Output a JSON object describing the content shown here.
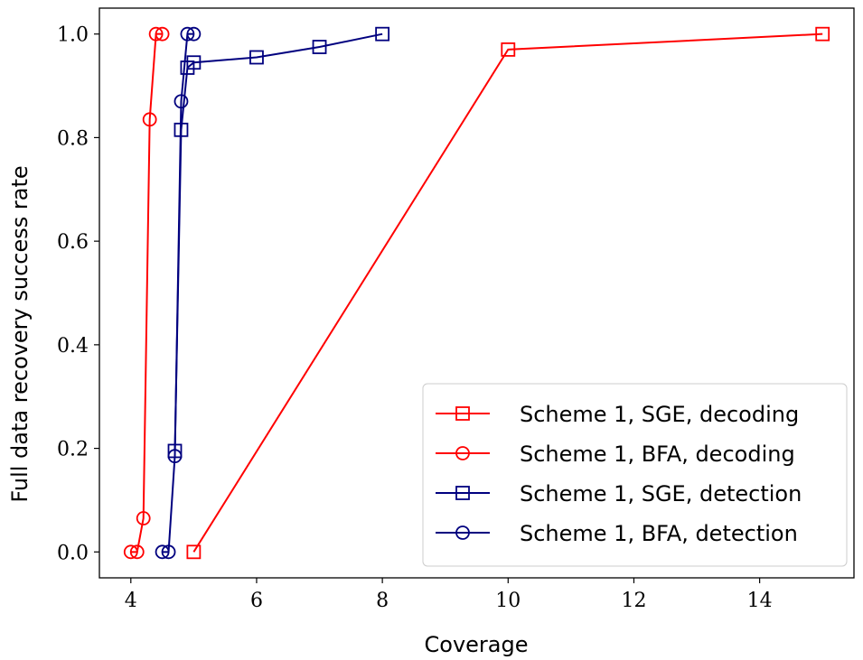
{
  "chart_data": {
    "type": "line",
    "title": "",
    "xlabel": "Coverage",
    "ylabel": "Full data recovery success rate",
    "xlim": [
      3.5,
      15.5
    ],
    "ylim": [
      -0.05,
      1.05
    ],
    "xticks": [
      4,
      6,
      8,
      10,
      12,
      14
    ],
    "yticks": [
      0.0,
      0.2,
      0.4,
      0.6,
      0.8,
      1.0
    ],
    "xtick_labels": [
      "4",
      "6",
      "8",
      "10",
      "12",
      "14"
    ],
    "ytick_labels": [
      "0.0",
      "0.2",
      "0.4",
      "0.6",
      "0.8",
      "1.0"
    ],
    "grid": false,
    "legend_position": "lower-right",
    "series": [
      {
        "name": "Scheme 1, SGE, decoding",
        "color": "#ff0000",
        "marker": "square",
        "x": [
          5,
          10,
          15
        ],
        "y": [
          0.0,
          0.97,
          1.0
        ]
      },
      {
        "name": "Scheme 1, BFA, decoding",
        "color": "#ff0000",
        "marker": "circle",
        "x": [
          4.0,
          4.1,
          4.2,
          4.3,
          4.4,
          4.5
        ],
        "y": [
          0.0,
          0.0,
          0.065,
          0.835,
          1.0,
          1.0
        ]
      },
      {
        "name": "Scheme 1, SGE, detection",
        "color": "#00007f",
        "marker": "square",
        "x": [
          4.7,
          4.8,
          4.9,
          5.0,
          6.0,
          7.0,
          8.0
        ],
        "y": [
          0.195,
          0.815,
          0.935,
          0.945,
          0.955,
          0.975,
          1.0
        ]
      },
      {
        "name": "Scheme 1, BFA, detection",
        "color": "#00007f",
        "marker": "circle",
        "x": [
          4.5,
          4.6,
          4.7,
          4.8,
          4.9,
          5.0
        ],
        "y": [
          0.0,
          0.0,
          0.185,
          0.87,
          1.0,
          1.0
        ]
      }
    ]
  }
}
